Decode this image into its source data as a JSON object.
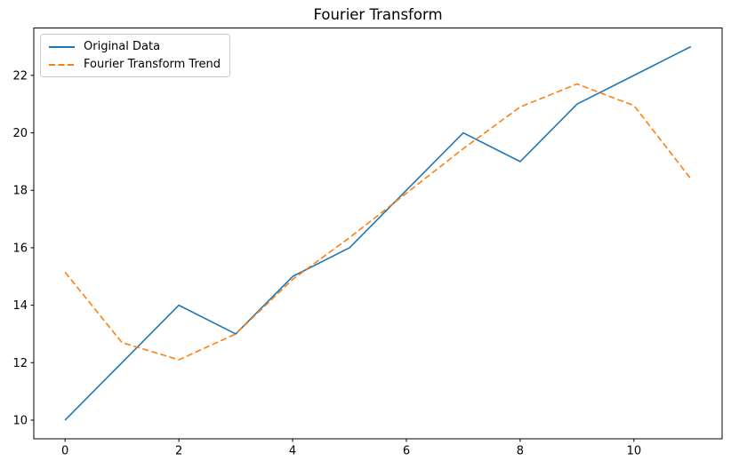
{
  "figure": {
    "background": "#ffffff",
    "spine_color": "#000000"
  },
  "chart_data": {
    "type": "line",
    "title": "Fourier Transform",
    "xlabel": "",
    "ylabel": "",
    "grid": false,
    "legend_position": "upper-left",
    "x": [
      0,
      1,
      2,
      3,
      4,
      5,
      6,
      7,
      8,
      9,
      10,
      11
    ],
    "series": [
      {
        "name": "Original Data",
        "color": "#1f77b4",
        "style": "solid",
        "values": [
          10,
          12,
          14,
          13,
          15,
          16,
          18,
          20,
          19,
          21,
          22,
          23
        ]
      },
      {
        "name": "Fourier Transform Trend",
        "color": "#ff7f0e",
        "style": "dashed",
        "values": [
          15.15,
          12.7,
          12.1,
          13.0,
          14.9,
          16.35,
          17.9,
          19.45,
          20.9,
          21.7,
          20.95,
          18.4
        ]
      }
    ],
    "x_ticks": [
      0,
      2,
      4,
      6,
      8,
      10
    ],
    "y_ticks": [
      10,
      12,
      14,
      16,
      18,
      20,
      22
    ],
    "xlim": [
      -0.55,
      11.55
    ],
    "ylim": [
      9.35,
      23.65
    ]
  }
}
